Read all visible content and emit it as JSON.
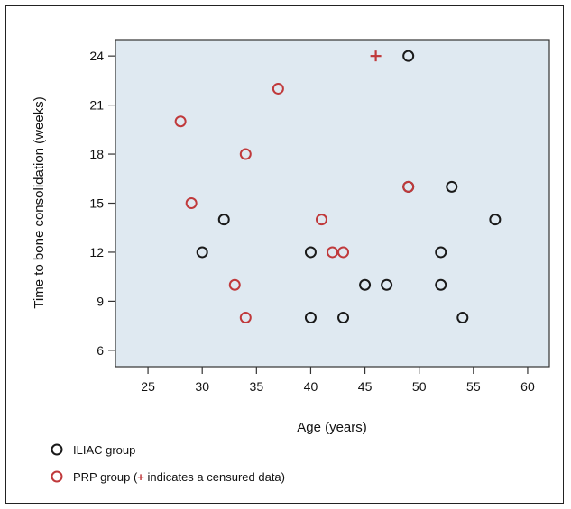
{
  "chart_data": {
    "type": "scatter",
    "title": "",
    "xlabel": "Age (years)",
    "ylabel": "Time to bone consolidation (weeks)",
    "xlim": [
      22,
      62
    ],
    "ylim": [
      5,
      25
    ],
    "xticks": [
      25,
      30,
      35,
      40,
      45,
      50,
      55,
      60
    ],
    "yticks": [
      6,
      9,
      12,
      15,
      18,
      21,
      24
    ],
    "grid": false,
    "legend_position": "bottom-left",
    "background": "#dfe9f1",
    "series": [
      {
        "name": "ILIAC group",
        "color": "#1a1a1a",
        "marker": "circle",
        "points": [
          {
            "x": 30,
            "y": 12
          },
          {
            "x": 32,
            "y": 14
          },
          {
            "x": 40,
            "y": 12
          },
          {
            "x": 40,
            "y": 8
          },
          {
            "x": 43,
            "y": 8
          },
          {
            "x": 45,
            "y": 10
          },
          {
            "x": 47,
            "y": 10
          },
          {
            "x": 49,
            "y": 24
          },
          {
            "x": 49,
            "y": 16
          },
          {
            "x": 52,
            "y": 12
          },
          {
            "x": 52,
            "y": 10
          },
          {
            "x": 53,
            "y": 16
          },
          {
            "x": 54,
            "y": 8
          },
          {
            "x": 57,
            "y": 14
          }
        ]
      },
      {
        "name": "PRP group",
        "color": "#c0393b",
        "marker": "circle",
        "points": [
          {
            "x": 28,
            "y": 20
          },
          {
            "x": 29,
            "y": 15
          },
          {
            "x": 33,
            "y": 10
          },
          {
            "x": 34,
            "y": 18
          },
          {
            "x": 34,
            "y": 8
          },
          {
            "x": 37,
            "y": 22
          },
          {
            "x": 41,
            "y": 14
          },
          {
            "x": 42,
            "y": 12
          },
          {
            "x": 43,
            "y": 12
          },
          {
            "x": 49,
            "y": 16
          }
        ],
        "censored": [
          {
            "x": 46,
            "y": 24
          }
        ]
      }
    ],
    "legend": [
      {
        "label": "ILIAC group",
        "color": "#1a1a1a"
      },
      {
        "label_prefix": "PRP group (",
        "symbol": "+",
        "label_suffix": " indicates a censured data)",
        "color": "#c0393b"
      }
    ]
  }
}
